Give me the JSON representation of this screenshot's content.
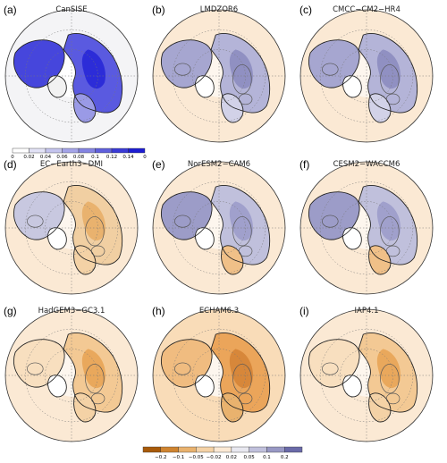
{
  "panels": [
    {
      "letter": "(a)",
      "title": "CanSISE",
      "kind": "obs"
    },
    {
      "letter": "(b)",
      "title": "LMDZOR6",
      "kind": "model_strong"
    },
    {
      "letter": "(c)",
      "title": "CMCC−CM2−HR4",
      "kind": "model_strong"
    },
    {
      "letter": "(d)",
      "title": "EC−Earth3−DMI",
      "kind": "model_weak"
    },
    {
      "letter": "(e)",
      "title": "NorESM2−CAM6",
      "kind": "model_mid"
    },
    {
      "letter": "(f)",
      "title": "CESM2−WACCM6",
      "kind": "model_mid"
    },
    {
      "letter": "(g)",
      "title": "HadGEM3−GC3.1",
      "kind": "model_warm"
    },
    {
      "letter": "(h)",
      "title": "ECHAM6.3",
      "kind": "model_hot"
    },
    {
      "letter": "(i)",
      "title": "IAP4.1",
      "kind": "model_warm"
    }
  ],
  "colorbars": {
    "obs": {
      "ticks": [
        "0",
        "0.02",
        "0.04",
        "0.06",
        "0.08",
        "0.1",
        "0.12",
        "0.14",
        "0"
      ],
      "colors": [
        "#ffffff",
        "#e2e2f6",
        "#c4c4ee",
        "#a4a4e8",
        "#8484e2",
        "#5f5fdc",
        "#3a3ad6",
        "#1c1cd2"
      ]
    },
    "diff": {
      "ticks": [
        "−0.2",
        "−0.1",
        "−0.05",
        "−0.02",
        "0.02",
        "0.05",
        "0.1",
        "0.2"
      ],
      "colors": [
        "#a85a0a",
        "#cf8430",
        "#e9b26e",
        "#f4d2a6",
        "#fbe9d4",
        "#e8e8f0",
        "#c0c0dc",
        "#9898c4",
        "#6a6aa8"
      ]
    }
  }
}
